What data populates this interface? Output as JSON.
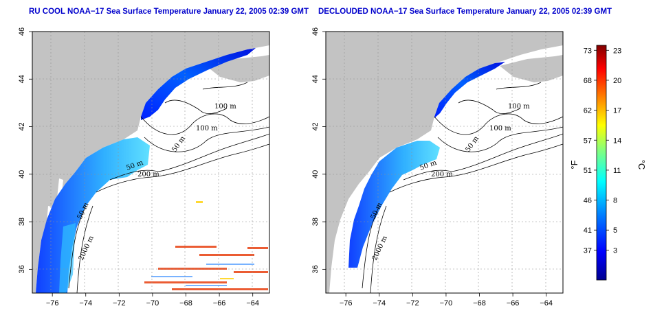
{
  "maps": [
    {
      "title": "RU COOL NOAA−17 Sea Surface Temperature January 22, 2005 02:39 GMT",
      "variant": "raw"
    },
    {
      "title": "DECLOUDED NOAA−17 Sea Surface Temperature January 22, 2005 02:39 GMT",
      "variant": "declouded"
    }
  ],
  "axes": {
    "longitude_ticks": [
      "−76",
      "−74",
      "−72",
      "−70",
      "−68",
      "−66",
      "−64"
    ],
    "longitude_values": [
      -76,
      -74,
      -72,
      -70,
      -68,
      -66,
      -64
    ],
    "latitude_ticks": [
      "36",
      "38",
      "40",
      "42",
      "44",
      "46"
    ],
    "latitude_values": [
      36,
      38,
      40,
      42,
      44,
      46
    ],
    "lon_range": [
      -77.2,
      -63.0
    ],
    "lat_range": [
      35.0,
      46.0
    ],
    "grid": "dotted"
  },
  "contour_labels": {
    "left": [
      "100 m",
      "100 m",
      "50 m",
      "200 m",
      "50 m",
      "2000 m",
      "50 m"
    ],
    "right": [
      "100 m",
      "100 m",
      "50 m",
      "200 m",
      "50 m",
      "2000 m",
      "50 m"
    ]
  },
  "colorbar": {
    "fahrenheit_label": "°F",
    "celsius_label": "°C",
    "fahrenheit_ticks": [
      "73",
      "68",
      "62",
      "57",
      "51",
      "46",
      "41",
      "37"
    ],
    "celsius_ticks": [
      "23",
      "20",
      "17",
      "14",
      "11",
      "8",
      "5",
      "3"
    ],
    "celsius_values": [
      23,
      20,
      17,
      14,
      11,
      8,
      5,
      3
    ],
    "range_c": [
      0,
      23.5
    ],
    "colors": [
      "#00008f",
      "#0000ff",
      "#0080ff",
      "#00ffff",
      "#80ff80",
      "#ffff00",
      "#ff8000",
      "#ff0000",
      "#800000"
    ]
  },
  "colors": {
    "land": "#c3c3c3",
    "water": "#ffffff",
    "title": "#0000cc",
    "contour": "#000000"
  }
}
